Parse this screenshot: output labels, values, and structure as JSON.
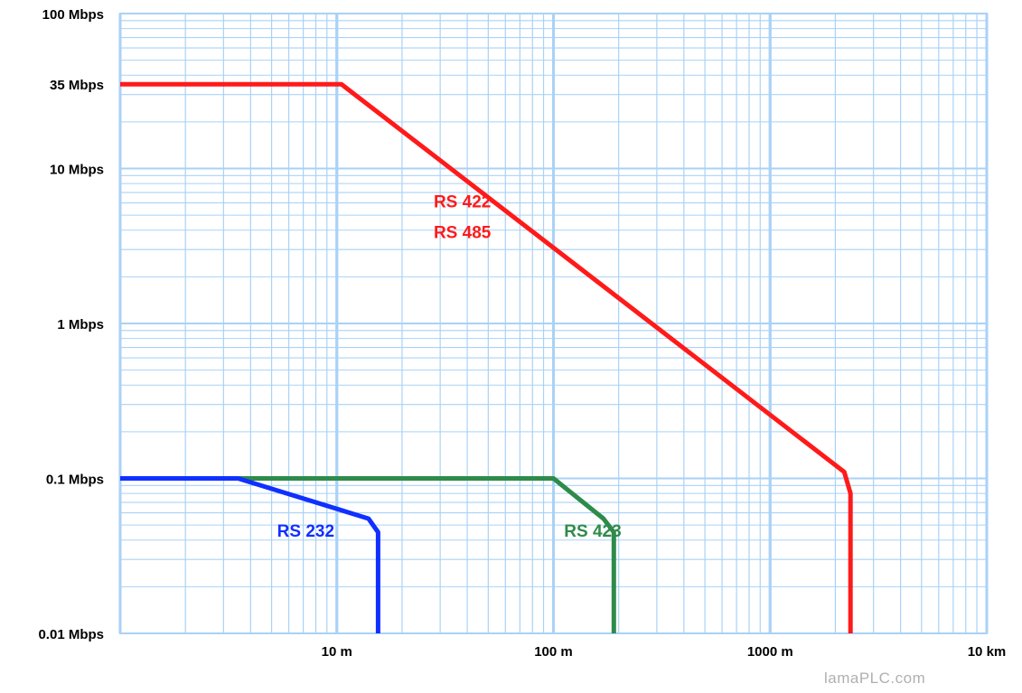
{
  "chart_data": {
    "type": "line",
    "x_scale": "log",
    "y_scale": "log",
    "xlim": [
      1,
      10000
    ],
    "ylim": [
      0.01,
      100
    ],
    "grid": true,
    "x_ticks": [
      {
        "value": 10,
        "label": "10 m"
      },
      {
        "value": 100,
        "label": "100 m"
      },
      {
        "value": 1000,
        "label": "1000 m"
      },
      {
        "value": 10000,
        "label": "10 km"
      }
    ],
    "y_ticks": [
      {
        "value": 100,
        "label": "100 Mbps"
      },
      {
        "value": 35,
        "label": "35 Mbps"
      },
      {
        "value": 10,
        "label": "10 Mbps"
      },
      {
        "value": 1,
        "label": "1 Mbps"
      },
      {
        "value": 0.1,
        "label": "0.1 Mbps"
      },
      {
        "value": 0.01,
        "label": "0.01 Mbps"
      }
    ],
    "series": [
      {
        "name": "RS 422\nRS 485",
        "color": "#ff1a1a",
        "points": [
          [
            1,
            35
          ],
          [
            10.5,
            35
          ],
          [
            2200,
            0.11
          ],
          [
            2350,
            0.08
          ],
          [
            2350,
            0.01
          ]
        ],
        "label_lines": [
          "RS 422",
          "RS 485"
        ],
        "label_pos": [
          28,
          5.6
        ]
      },
      {
        "name": "RS 423",
        "color": "#2e8b4a",
        "points": [
          [
            3.5,
            0.1
          ],
          [
            100,
            0.1
          ],
          [
            170,
            0.055
          ],
          [
            190,
            0.045
          ],
          [
            190,
            0.01
          ]
        ],
        "label_lines": [
          "RS 423"
        ],
        "label_pos": [
          112,
          0.042
        ]
      },
      {
        "name": "RS 232",
        "color": "#1030ff",
        "points": [
          [
            1,
            0.1
          ],
          [
            3.5,
            0.1
          ],
          [
            14,
            0.055
          ],
          [
            15.5,
            0.045
          ],
          [
            15.5,
            0.01
          ]
        ],
        "label_lines": [
          "RS 232"
        ],
        "label_pos": [
          5.3,
          0.042
        ]
      }
    ]
  },
  "watermark": "lamaPLC.com"
}
